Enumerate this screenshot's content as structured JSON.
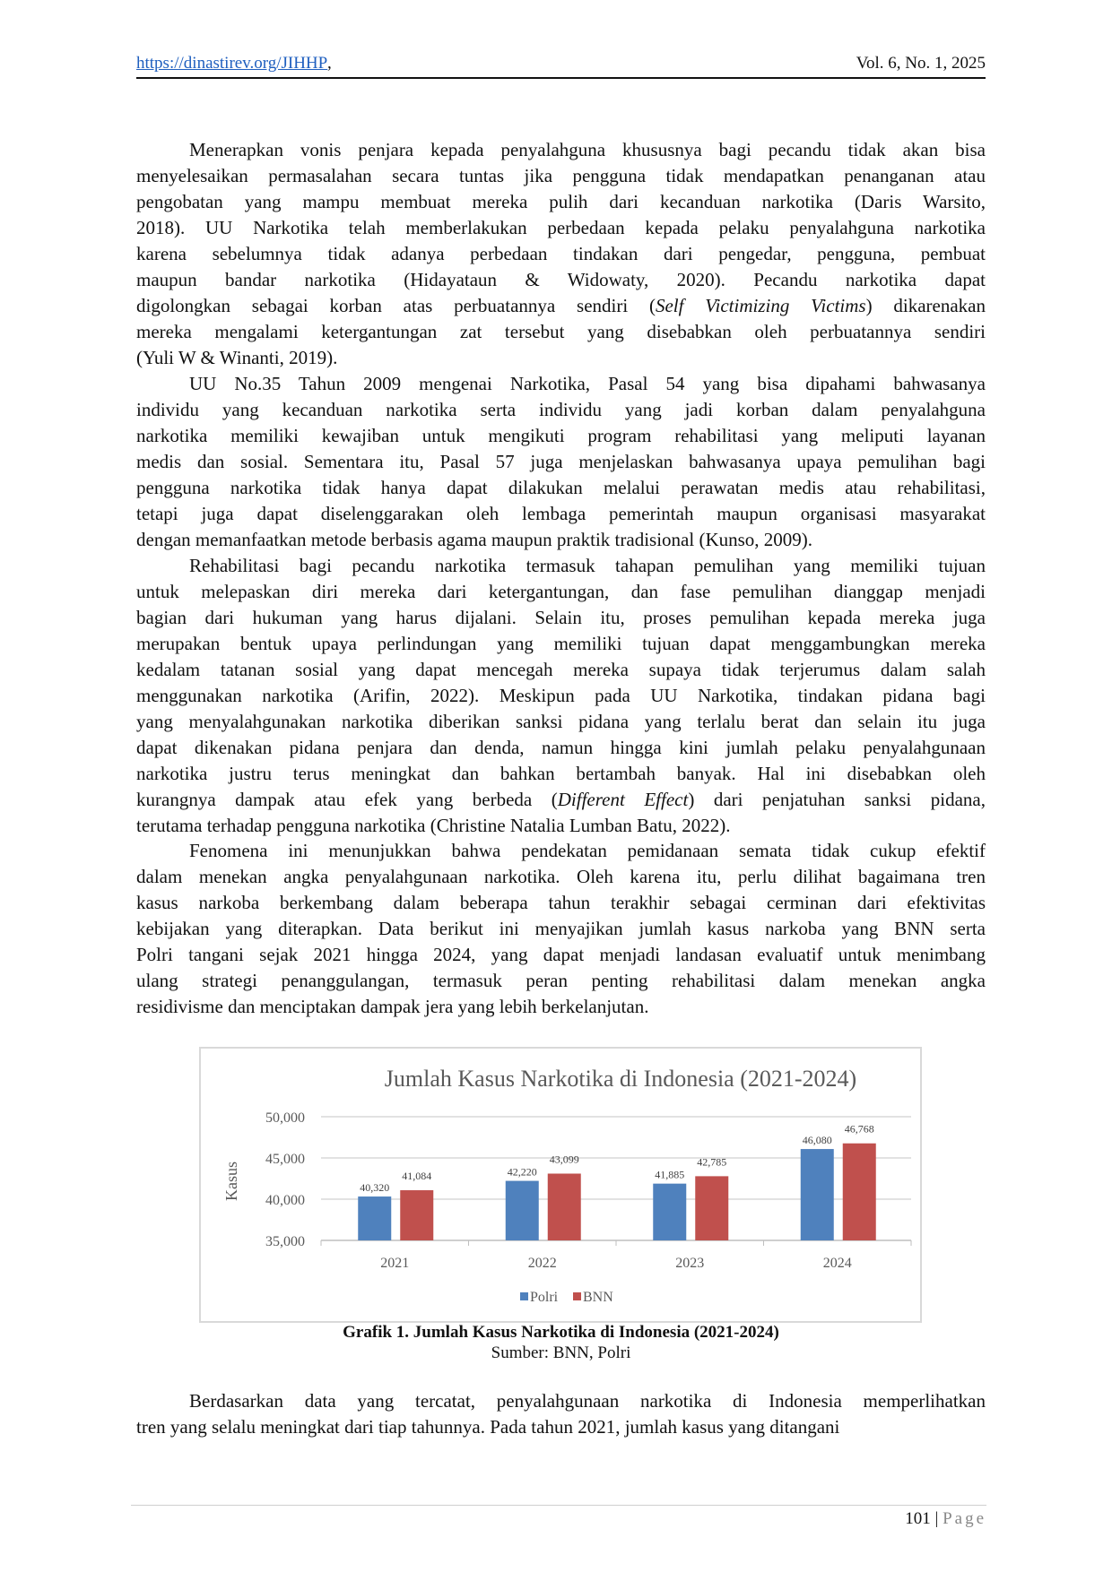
{
  "header": {
    "url": "https://dinastirev.org/JIHHP",
    "url_suffix": ",",
    "volume": "Vol. 6, No. 1, 2025"
  },
  "paragraphs": [
    {
      "lines": [
        "Menerapkan vonis penjara kepada penyalahguna khususnya bagi pecandu tidak akan bisa",
        "menyelesaikan permasalahan secara tuntas jika pengguna tidak mendapatkan penanganan atau",
        "pengobatan yang mampu membuat mereka pulih dari kecanduan narkotika (Daris Warsito,",
        "2018). UU Narkotika telah memberlakukan perbedaan kepada pelaku penyalahguna narkotika",
        "karena sebelumnya tidak adanya perbedaan tindakan dari pengedar, pengguna, pembuat",
        "maupun bandar narkotika (Hidayataun & Widowaty, 2020). Pecandu narkotika dapat",
        [
          {
            "t": "digolongkan sebagai korban atas perbuatannya sendiri ("
          },
          {
            "t": "Self Victimizing Victims",
            "i": true
          },
          {
            "t": ") dikarenakan"
          }
        ],
        "mereka mengalami ketergantungan zat tersebut yang disebabkan oleh perbuatannya sendiri",
        "(Yuli W & Winanti, 2019)."
      ]
    },
    {
      "lines": [
        "UU No.35 Tahun 2009 mengenai Narkotika, Pasal 54 yang bisa dipahami bahwasanya",
        "individu yang kecanduan narkotika serta individu yang jadi korban dalam penyalahguna",
        "narkotika memiliki kewajiban untuk mengikuti program rehabilitasi yang meliputi layanan",
        "medis dan sosial. Sementara itu, Pasal 57 juga menjelaskan bahwasanya upaya pemulihan bagi",
        "pengguna narkotika tidak hanya dapat dilakukan melalui perawatan medis atau rehabilitasi,",
        "tetapi juga dapat diselenggarakan oleh lembaga pemerintah maupun organisasi masyarakat",
        "dengan memanfaatkan metode berbasis agama maupun praktik tradisional (Kunso, 2009)."
      ]
    },
    {
      "lines": [
        "Rehabilitasi bagi pecandu narkotika termasuk tahapan pemulihan yang memiliki tujuan",
        "untuk melepaskan diri mereka dari ketergantungan, dan fase pemulihan dianggap menjadi",
        "bagian dari hukuman yang harus dijalani. Selain itu, proses pemulihan kepada mereka juga",
        "merupakan bentuk upaya perlindungan yang memiliki tujuan dapat menggambungkan mereka",
        "kedalam tatanan sosial yang dapat mencegah mereka supaya tidak terjerumus dalam salah",
        "menggunakan narkotika (Arifin, 2022). Meskipun pada UU Narkotika, tindakan pidana bagi",
        "yang menyalahgunakan narkotika diberikan sanksi pidana yang terlalu berat dan selain itu juga",
        "dapat dikenakan pidana penjara dan denda, namun hingga kini jumlah pelaku penyalahgunaan",
        "narkotika justru terus meningkat dan bahkan bertambah banyak. Hal ini disebabkan oleh",
        [
          {
            "t": "kurangnya dampak atau efek yang berbeda ("
          },
          {
            "t": "Different Effect",
            "i": true
          },
          {
            "t": ") dari penjatuhan sanksi pidana,"
          }
        ],
        "terutama terhadap pengguna narkotika (Christine Natalia Lumban Batu, 2022)."
      ]
    },
    {
      "lines": [
        "Fenomena ini menunjukkan bahwa pendekatan pemidanaan semata tidak cukup efektif",
        "dalam menekan angka penyalahgunaan narkotika. Oleh karena itu, perlu dilihat bagaimana tren",
        "kasus narkoba berkembang dalam beberapa tahun terakhir sebagai cerminan dari efektivitas",
        "kebijakan yang diterapkan. Data berikut ini menyajikan jumlah kasus narkoba yang BNN serta",
        "Polri tangani sejak 2021 hingga 2024, yang dapat menjadi landasan evaluatif untuk menimbang",
        "ulang strategi penanggulangan, termasuk peran penting rehabilitasi dalam menekan angka",
        "residivisme dan menciptakan dampak jera yang lebih berkelanjutan."
      ]
    }
  ],
  "chart_data": {
    "type": "bar",
    "title": "Jumlah Kasus Narkotika di Indonesia (2021-2024)",
    "xlabel": "",
    "ylabel": "Kasus",
    "categories": [
      "2021",
      "2022",
      "2023",
      "2024"
    ],
    "series": [
      {
        "name": "Polri",
        "values": [
          40320,
          42220,
          41885,
          46080
        ],
        "color": "#4f81bd"
      },
      {
        "name": "BNN",
        "values": [
          41084,
          43099,
          42785,
          46768
        ],
        "color": "#c0504d"
      }
    ],
    "ylim": [
      35000,
      50000
    ],
    "yticks": [
      "35,000",
      "40,000",
      "45,000",
      "50,000"
    ],
    "data_labels": [
      [
        "40,320",
        "42,220",
        "41,885",
        "46,080"
      ],
      [
        "41,084",
        "43,099",
        "42,785",
        "46,768"
      ]
    ],
    "grid": true,
    "legend": "bottom"
  },
  "caption": {
    "title": "Grafik 1. Jumlah Kasus Narkotika di Indonesia (2021-2024)",
    "source": "Sumber: BNN, Polri"
  },
  "final_paragraph": {
    "lines": [
      "Berdasarkan data yang tercatat, penyalahgunaan narkotika di Indonesia memperlihatkan",
      "tren yang selalu meningkat dari tiap tahunnya. Pada tahun 2021, jumlah kasus yang ditangani"
    ]
  },
  "footer": {
    "page_number": "101",
    "separator": "|",
    "page_label": "Page"
  }
}
